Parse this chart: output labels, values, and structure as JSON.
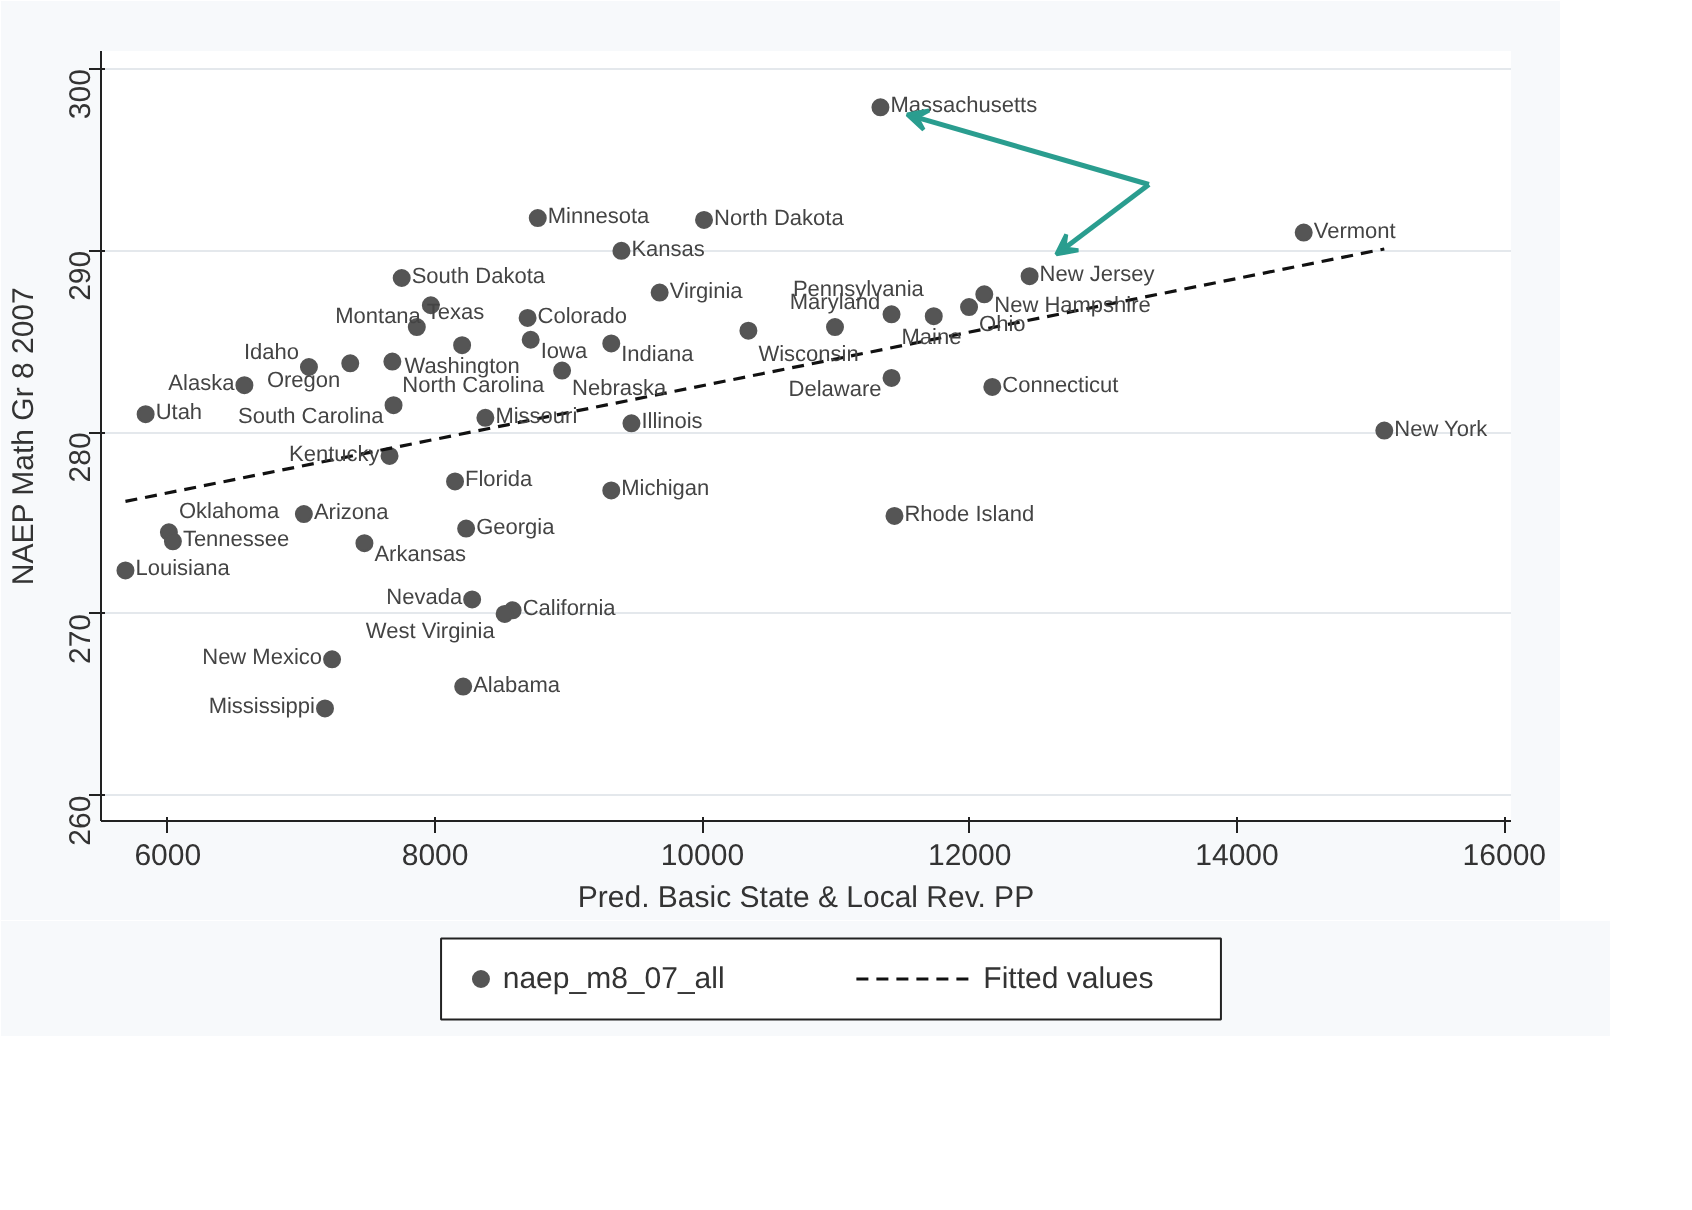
{
  "chart_data": {
    "type": "scatter",
    "xlabel": "Pred. Basic State & Local Rev. PP",
    "ylabel": "NAEP Math Gr 8 2007",
    "xlim": [
      5500,
      16050
    ],
    "ylim": [
      258.6,
      301
    ],
    "xticks": [
      6000,
      8000,
      10000,
      12000,
      14000,
      16000
    ],
    "yticks": [
      260,
      270,
      280,
      290,
      300
    ],
    "grid": "y",
    "legend": "bottom",
    "marker": "circle",
    "series": [
      {
        "name": "naep_m8_07_all",
        "color": "#555555",
        "x": [
          11332,
          12448,
          8768,
          10012,
          9394,
          14499,
          7750,
          7968,
          9680,
          7863,
          8692,
          8202,
          8715,
          9318,
          10344,
          10992,
          11415,
          11995,
          11731,
          12109,
          7056,
          7365,
          7680,
          8950,
          11415,
          12169,
          15102,
          11437,
          9318,
          9469,
          8376,
          7689,
          5834,
          6573,
          7659,
          8149,
          7018,
          8232,
          6008,
          6038,
          7471,
          5683,
          8277,
          8580,
          8520,
          7229,
          8210,
          7176
        ],
        "values": [
          297.9,
          288.6,
          291.8,
          291.7,
          290.0,
          291.0,
          288.5,
          287.0,
          287.7,
          285.8,
          286.3,
          284.8,
          285.1,
          284.9,
          285.6,
          285.8,
          286.5,
          286.9,
          286.4,
          287.6,
          283.6,
          283.8,
          283.9,
          283.4,
          283.0,
          282.5,
          280.1,
          275.4,
          276.8,
          280.5,
          280.8,
          281.5,
          281.0,
          282.6,
          278.7,
          277.3,
          275.5,
          274.7,
          274.5,
          274.0,
          273.9,
          272.4,
          270.8,
          270.2,
          270.0,
          267.5,
          266.0,
          264.8
        ],
        "value_labels": [
          "Massachusetts",
          "New Jersey",
          "Minnesota",
          "North Dakota",
          "Kansas",
          "Vermont",
          "South Dakota",
          "Montana",
          "Virginia",
          "Texas",
          "Colorado",
          "Washington",
          "Iowa",
          "Indiana",
          "Wisconsin",
          "Maryland",
          "Maine",
          "Ohio",
          "Pennsylvania",
          "New Hampshire",
          "Idaho",
          "Oregon",
          "North Carolina",
          "Nebraska",
          "Delaware",
          "Connecticut",
          "New York",
          "Rhode Island",
          "Michigan",
          "Illinois",
          "Missouri",
          "South Carolina",
          "Utah",
          "Alaska",
          "Kentucky",
          "Florida",
          "Arizona",
          "Georgia",
          "Oklahoma",
          "Tennessee",
          "Arkansas",
          "Louisiana",
          "Nevada",
          "California",
          "West Virginia",
          "New Mexico",
          "Alabama",
          "Mississippi"
        ]
      },
      {
        "name": "Fitted values",
        "type": "line",
        "color": "#111111",
        "line_style": "dashed",
        "marker": "none",
        "x": [
          5683,
          15102
        ],
        "values": [
          276.2,
          290.1
        ]
      }
    ]
  }
}
